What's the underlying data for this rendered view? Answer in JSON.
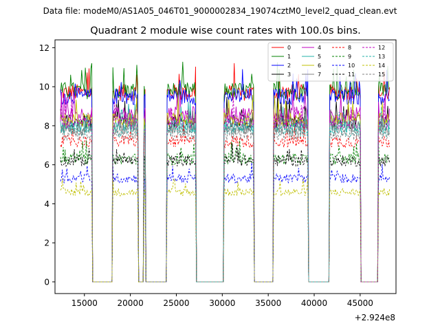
{
  "chart_data": {
    "type": "line",
    "suptitle": "Data file: modeM0/AS1A05_046T01_9000002834_19074cztM0_level2_quad_clean.evt",
    "title": "Quadrant 2 module wise count rates with 100.0s bins.",
    "xlabel": "",
    "ylabel": "",
    "x_offset_label": "+2.924e8",
    "xlim": [
      11800,
      48900
    ],
    "ylim": [
      -0.6,
      12.4
    ],
    "x_ticks": [
      15000,
      20000,
      25000,
      30000,
      35000,
      40000,
      45000
    ],
    "x_tick_labels": [
      "15000",
      "20000",
      "25000",
      "30000",
      "35000",
      "40000",
      "45000"
    ],
    "y_ticks": [
      0,
      2,
      4,
      6,
      8,
      10,
      12
    ],
    "y_tick_labels": [
      "0",
      "2",
      "4",
      "6",
      "8",
      "10",
      "12"
    ],
    "bin_size_s": 100,
    "x_start": 12400,
    "x_end": 48200,
    "on_intervals": [
      [
        12400,
        15800
      ],
      [
        18100,
        20800
      ],
      [
        21500,
        21600
      ],
      [
        24000,
        27100
      ],
      [
        30200,
        33400
      ],
      [
        35600,
        39300
      ],
      [
        41700,
        45000
      ],
      [
        47000,
        48200
      ]
    ],
    "legend_position": "upper right",
    "series": [
      {
        "name": "0",
        "color": "#ff0000",
        "style": "solid",
        "level": 9.7
      },
      {
        "name": "1",
        "color": "#008000",
        "style": "solid",
        "level": 9.8
      },
      {
        "name": "2",
        "color": "#0000ff",
        "style": "solid",
        "level": 9.5
      },
      {
        "name": "3",
        "color": "#000000",
        "style": "solid",
        "level": 8.2
      },
      {
        "name": "4",
        "color": "#c000c0",
        "style": "solid",
        "level": 8.6
      },
      {
        "name": "5",
        "color": "#20b2aa",
        "style": "solid",
        "level": 8.0
      },
      {
        "name": "6",
        "color": "#bfbf00",
        "style": "solid",
        "level": 8.3
      },
      {
        "name": "7",
        "color": "#808080",
        "style": "solid",
        "level": 7.9
      },
      {
        "name": "8",
        "color": "#ff0000",
        "style": "dashed",
        "level": 7.2
      },
      {
        "name": "9",
        "color": "#008000",
        "style": "dashed",
        "level": 6.3
      },
      {
        "name": "10",
        "color": "#0000ff",
        "style": "dashed",
        "level": 5.3
      },
      {
        "name": "11",
        "color": "#000000",
        "style": "dashed",
        "level": 6.2
      },
      {
        "name": "12",
        "color": "#c000c0",
        "style": "dashed",
        "level": 8.2
      },
      {
        "name": "13",
        "color": "#20b2aa",
        "style": "dashed",
        "level": 7.8
      },
      {
        "name": "14",
        "color": "#bfbf00",
        "style": "dashed",
        "level": 4.6
      },
      {
        "name": "15",
        "color": "#808080",
        "style": "dashed",
        "level": 7.6
      }
    ]
  }
}
